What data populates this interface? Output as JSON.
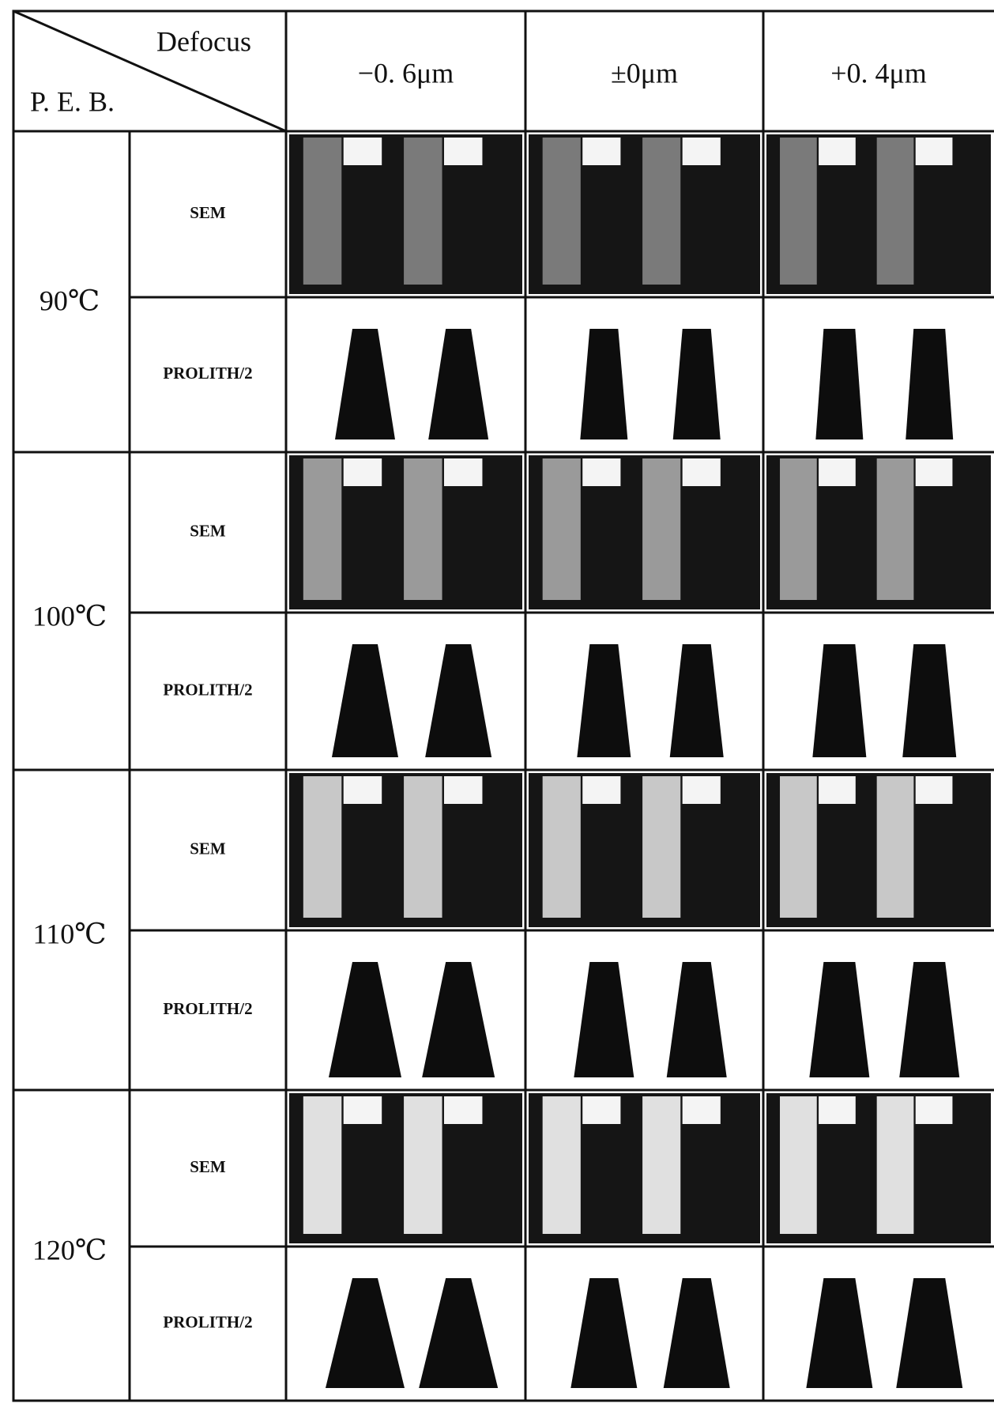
{
  "header": {
    "column_axis": "Defocus",
    "row_axis": "P. E. B.",
    "columns": [
      "−0. 6μm",
      "±0μm",
      "+0. 4μm"
    ]
  },
  "groups": [
    {
      "temperature": "90℃",
      "rows": [
        "SEM",
        "PROLITH/2"
      ]
    },
    {
      "temperature": "100℃",
      "rows": [
        "SEM",
        "PROLITH/2"
      ]
    },
    {
      "temperature": "110℃",
      "rows": [
        "SEM",
        "PROLITH/2"
      ]
    },
    {
      "temperature": "120℃",
      "rows": [
        "SEM",
        "PROLITH/2"
      ]
    }
  ]
}
